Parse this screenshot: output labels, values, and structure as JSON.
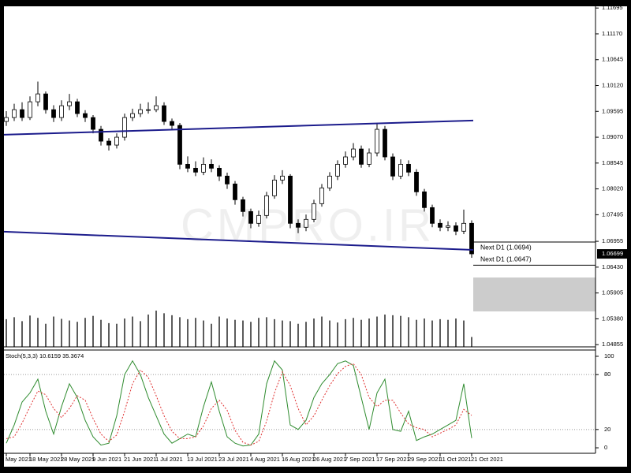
{
  "chart_data": [
    {
      "type": "candlestick",
      "watermark": "CMPRO.IR",
      "categories": [
        "May 2021",
        null,
        null,
        "18 May 2021",
        null,
        null,
        null,
        "28 May 2021",
        null,
        null,
        null,
        "9 Jun 2021",
        null,
        null,
        null,
        "21 Jun 2021",
        null,
        null,
        null,
        "1 Jul 2021",
        null,
        null,
        null,
        "13 Jul 2021",
        null,
        null,
        null,
        "23 Jul 2021",
        null,
        null,
        null,
        "4 Aug 2021",
        null,
        null,
        null,
        "16 Aug 2021",
        null,
        null,
        null,
        "26 Aug 2021",
        null,
        null,
        null,
        "7 Sep 2021",
        null,
        null,
        null,
        "17 Sep 2021",
        null,
        null,
        null,
        "29 Sep 2021",
        null,
        null,
        null,
        "11 Oct 2021",
        null,
        null,
        null,
        "21 Oct 2021"
      ],
      "open": [
        1.0939,
        1.0947,
        1.0963,
        1.0947,
        1.0979,
        1.0995,
        1.0963,
        1.0947,
        1.0971,
        1.0979,
        1.0955,
        1.0947,
        1.0923,
        1.0899,
        1.0891,
        1.0907,
        1.0947,
        1.0955,
        1.0963,
        1.0963,
        1.0971,
        1.0939,
        1.0931,
        1.0852,
        1.0844,
        1.0836,
        1.0852,
        1.0844,
        1.0828,
        1.0812,
        1.078,
        1.0756,
        1.0732,
        1.0748,
        1.0788,
        1.082,
        1.0828,
        1.0732,
        1.0724,
        1.074,
        1.0772,
        1.0804,
        1.0828,
        1.0852,
        1.0867,
        1.0883,
        1.0852,
        1.0875,
        1.0923,
        1.0867,
        1.0828,
        1.0852,
        1.0836,
        1.0796,
        1.0764,
        1.0732,
        1.0724,
        1.0727,
        1.0716,
        1.0732
      ],
      "high": [
        1.096,
        1.0975,
        1.0978,
        1.099,
        1.102,
        1.1,
        1.0972,
        1.0982,
        1.0995,
        1.0985,
        1.0962,
        1.0952,
        1.093,
        1.0905,
        1.0915,
        1.0955,
        1.0965,
        1.0975,
        1.0978,
        1.099,
        1.0978,
        1.0945,
        1.0936,
        1.0868,
        1.0858,
        1.0866,
        1.0862,
        1.085,
        1.0835,
        1.0818,
        1.0786,
        1.0762,
        1.0758,
        1.0796,
        1.083,
        1.084,
        1.0832,
        1.074,
        1.075,
        1.078,
        1.0812,
        1.0836,
        1.086,
        1.0878,
        1.0895,
        1.089,
        1.0884,
        1.0935,
        1.093,
        1.0874,
        1.0862,
        1.086,
        1.0842,
        1.0802,
        1.077,
        1.074,
        1.0736,
        1.0734,
        1.076,
        1.0738
      ],
      "low": [
        1.093,
        1.094,
        1.094,
        1.0942,
        1.097,
        1.0955,
        1.0938,
        1.094,
        1.0962,
        1.0948,
        1.0938,
        1.0915,
        1.089,
        1.088,
        1.0884,
        1.09,
        1.094,
        1.0948,
        1.0955,
        1.0958,
        1.0932,
        1.0922,
        1.0842,
        1.0836,
        1.0828,
        1.083,
        1.0836,
        1.0818,
        1.0802,
        1.077,
        1.0746,
        1.0722,
        1.0725,
        1.0742,
        1.0782,
        1.0812,
        1.0722,
        1.0712,
        1.0716,
        1.0734,
        1.0766,
        1.0798,
        1.082,
        1.0845,
        1.086,
        1.0845,
        1.0846,
        1.0868,
        1.086,
        1.082,
        1.0822,
        1.0828,
        1.0788,
        1.0756,
        1.0724,
        1.0716,
        1.0716,
        1.0708,
        1.071,
        1.0662
      ],
      "close": [
        1.0947,
        1.0963,
        1.0947,
        1.0979,
        1.0995,
        1.0963,
        1.0947,
        1.0971,
        1.0979,
        1.0955,
        1.0947,
        1.0923,
        1.0899,
        1.0891,
        1.0907,
        1.0947,
        1.0955,
        1.0963,
        1.0963,
        1.0971,
        1.0939,
        1.0931,
        1.0852,
        1.0844,
        1.0836,
        1.0852,
        1.0844,
        1.0828,
        1.0812,
        1.078,
        1.0756,
        1.0732,
        1.0748,
        1.0788,
        1.082,
        1.0828,
        1.0732,
        1.0724,
        1.074,
        1.0772,
        1.0804,
        1.0828,
        1.0852,
        1.0867,
        1.0883,
        1.0852,
        1.0875,
        1.0923,
        1.0867,
        1.0828,
        1.0852,
        1.0836,
        1.0796,
        1.0764,
        1.0732,
        1.0724,
        1.0727,
        1.0716,
        1.0732,
        1.067
      ],
      "volumes": [
        84,
        90,
        78,
        95,
        88,
        70,
        92,
        85,
        80,
        76,
        88,
        94,
        82,
        72,
        70,
        86,
        92,
        78,
        98,
        110,
        102,
        96,
        90,
        84,
        88,
        80,
        70,
        92,
        86,
        82,
        80,
        76,
        88,
        90,
        84,
        80,
        78,
        70,
        76,
        86,
        92,
        80,
        74,
        84,
        88,
        82,
        86,
        92,
        98,
        96,
        94,
        90,
        82,
        86,
        80,
        84,
        82,
        86,
        80,
        30
      ],
      "volume_color": "#333333",
      "ylim": [
        1.0481,
        1.1173
      ],
      "yticks": [
        1.11695,
        {
          "value": 1.1117,
          "label": "1.11170"
        },
        1.10645,
        {
          "value": 1.1012,
          "label": "1.10120"
        },
        1.09595,
        {
          "value": 1.0907,
          "label": "1.09070"
        },
        1.08545,
        {
          "value": 1.0802,
          "label": "1.08020"
        },
        1.07495,
        1.06955,
        {
          "value": 1.0643,
          "label": "1.06430"
        },
        1.05905,
        {
          "value": 1.0538,
          "label": "1.05380"
        },
        1.04855
      ],
      "current_price": 1.06699,
      "trendlines": [
        {
          "color": "#1c1c8c",
          "values": [
            1.0912,
            1.0941
          ]
        },
        {
          "color": "#1c1c8c",
          "values": [
            1.0715,
            1.0678
          ]
        }
      ],
      "levels": [
        {
          "label": "Next D1 (1.0694)",
          "value": 1.0694
        },
        {
          "label": "Next D1 (1.0647)",
          "value": 1.0647
        }
      ],
      "zone": [
        1.0553,
        1.0622
      ],
      "zone_color": "#cccccc"
    },
    {
      "type": "line",
      "title": "Stoch(5,3,3) 10.6159 35.3674",
      "series": [
        {
          "color": "#2e8b2e",
          "dashed": false,
          "values": [
            5,
            25,
            50,
            60,
            75,
            40,
            15,
            45,
            70,
            55,
            30,
            12,
            3,
            5,
            35,
            80,
            95,
            80,
            55,
            35,
            15,
            5,
            10,
            15,
            12,
            45,
            72,
            40,
            12,
            5,
            2,
            3,
            15,
            70,
            95,
            85,
            25,
            20,
            30,
            55,
            70,
            80,
            92,
            95,
            90,
            55,
            20,
            60,
            75,
            20,
            18,
            40,
            8,
            12,
            15,
            20,
            25,
            30,
            70,
            10.6159
          ]
        },
        {
          "color": "#e03030",
          "dashed": true,
          "values": [
            10,
            12,
            27,
            45,
            62,
            58,
            43,
            33,
            43,
            57,
            52,
            32,
            15,
            7,
            14,
            40,
            70,
            85,
            77,
            57,
            35,
            18,
            10,
            10,
            12,
            24,
            43,
            52,
            41,
            19,
            6,
            3,
            7,
            29,
            60,
            83,
            68,
            43,
            25,
            35,
            52,
            68,
            81,
            89,
            92,
            80,
            55,
            45,
            52,
            52,
            38,
            26,
            22,
            20,
            12,
            16,
            20,
            25,
            42,
            35.3674
          ]
        }
      ],
      "ylim": [
        -6,
        106
      ],
      "yticks": [
        0,
        20,
        80,
        100
      ],
      "levels": [
        20,
        80
      ]
    }
  ]
}
